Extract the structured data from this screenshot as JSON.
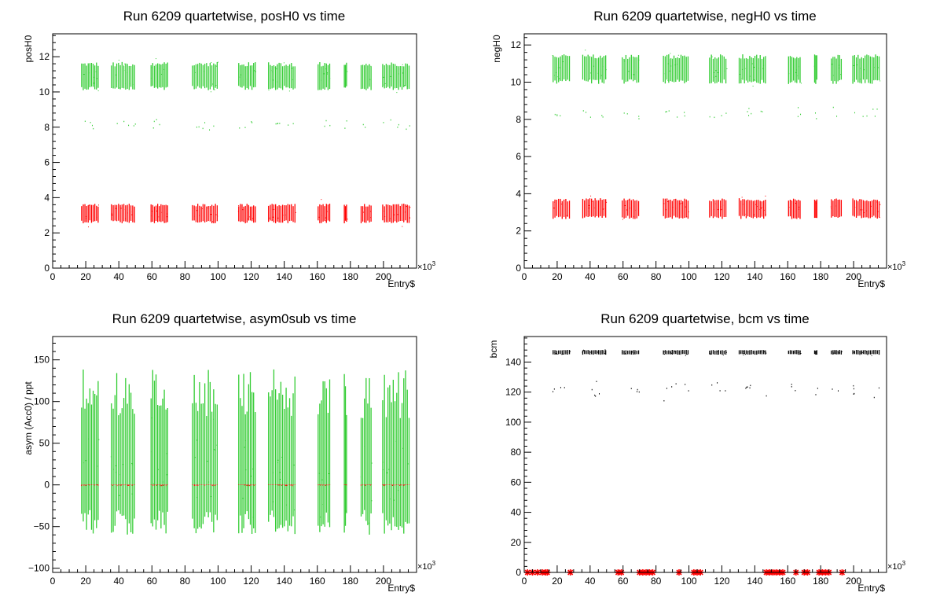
{
  "chart_data": [
    {
      "type": "scatter",
      "title": "Run 6209 quartetwise, posH0 vs time",
      "xlabel": "Entry$",
      "ylabel": "posH0",
      "xlim": [
        0,
        220000
      ],
      "ylim": [
        0,
        13.3
      ],
      "xticks": [
        0,
        20,
        40,
        60,
        80,
        100,
        120,
        140,
        160,
        180,
        200
      ],
      "yticks": [
        0,
        2,
        4,
        6,
        8,
        10,
        12
      ],
      "x_multiplier": "×10",
      "x_multiplier_exp": "3",
      "grid": false,
      "series": [
        {
          "color": "#33cc33",
          "center": 10.9,
          "spread": 1.0,
          "low_center": 8.2,
          "low_spread": 0.5
        },
        {
          "color": "#ff0000",
          "center": 3.1,
          "spread": 0.7,
          "low_center": null,
          "low_spread": 0
        }
      ]
    },
    {
      "type": "scatter",
      "title": "Run 6209 quartetwise, negH0 vs time",
      "xlabel": "Entry$",
      "ylabel": "negH0",
      "xlim": [
        0,
        220000
      ],
      "ylim": [
        0,
        12.6
      ],
      "xticks": [
        0,
        20,
        40,
        60,
        80,
        100,
        120,
        140,
        160,
        180,
        200
      ],
      "yticks": [
        0,
        2,
        4,
        6,
        8,
        10,
        12
      ],
      "x_multiplier": "×10",
      "x_multiplier_exp": "3",
      "grid": false,
      "series": [
        {
          "color": "#33cc33",
          "center": 10.7,
          "spread": 1.0,
          "low_center": 8.3,
          "low_spread": 0.6
        },
        {
          "color": "#ff0000",
          "center": 3.2,
          "spread": 0.7,
          "low_center": null,
          "low_spread": 0
        }
      ]
    },
    {
      "type": "scatter",
      "title": "Run 6209 quartetwise, asym0sub vs time",
      "xlabel": "Entry$",
      "ylabel": "asym (Acc0) / ppt",
      "xlim": [
        0,
        220000
      ],
      "ylim": [
        -105,
        178
      ],
      "xticks": [
        0,
        20,
        40,
        60,
        80,
        100,
        120,
        140,
        160,
        180,
        200
      ],
      "yticks": [
        -100,
        -50,
        0,
        50,
        100,
        150
      ],
      "x_multiplier": "×10",
      "x_multiplier_exp": "3",
      "grid": false,
      "series": [
        {
          "color": "#33cc33",
          "center": 20,
          "spread": 110,
          "low_center": null,
          "low_spread": 0
        },
        {
          "color": "#ff0000",
          "center": 0,
          "spread": 0.6,
          "low_center": null,
          "low_spread": 0
        }
      ]
    },
    {
      "type": "scatter",
      "title": "Run 6209 quartetwise, bcm vs time",
      "xlabel": "Entry$",
      "ylabel": "bcm",
      "xlim": [
        0,
        220000
      ],
      "ylim": [
        0,
        157
      ],
      "xticks": [
        0,
        20,
        40,
        60,
        80,
        100,
        120,
        140,
        160,
        180,
        200
      ],
      "yticks": [
        0,
        20,
        40,
        60,
        80,
        100,
        120,
        140
      ],
      "x_multiplier": "×10",
      "x_multiplier_exp": "3",
      "grid": false,
      "series": [
        {
          "color": "#000000",
          "center": 146.5,
          "spread": 2.0,
          "low_center": 122,
          "low_spread": 10
        },
        {
          "color": "#ff0000",
          "center": 0,
          "spread": 0,
          "low_center": null,
          "low_spread": 0,
          "marker": "star"
        }
      ],
      "red_markers_x": [
        2000,
        5000,
        8000,
        11000,
        13000,
        14000,
        28000,
        57000,
        59000,
        70000,
        72000,
        74000,
        76000,
        78000,
        94000,
        103000,
        105000,
        107000,
        147000,
        149000,
        151000,
        153000,
        155000,
        157000,
        165000,
        170000,
        172000,
        179000,
        181000,
        183000,
        185000,
        193000
      ]
    }
  ],
  "runs": [
    [
      17000,
      28000
    ],
    [
      35000,
      50000
    ],
    [
      59000,
      70000
    ],
    [
      84000,
      100000
    ],
    [
      112000,
      123000
    ],
    [
      130000,
      147000
    ],
    [
      160000,
      168000
    ],
    [
      176000,
      178000
    ],
    [
      186000,
      193000
    ],
    [
      199000,
      216000
    ]
  ]
}
